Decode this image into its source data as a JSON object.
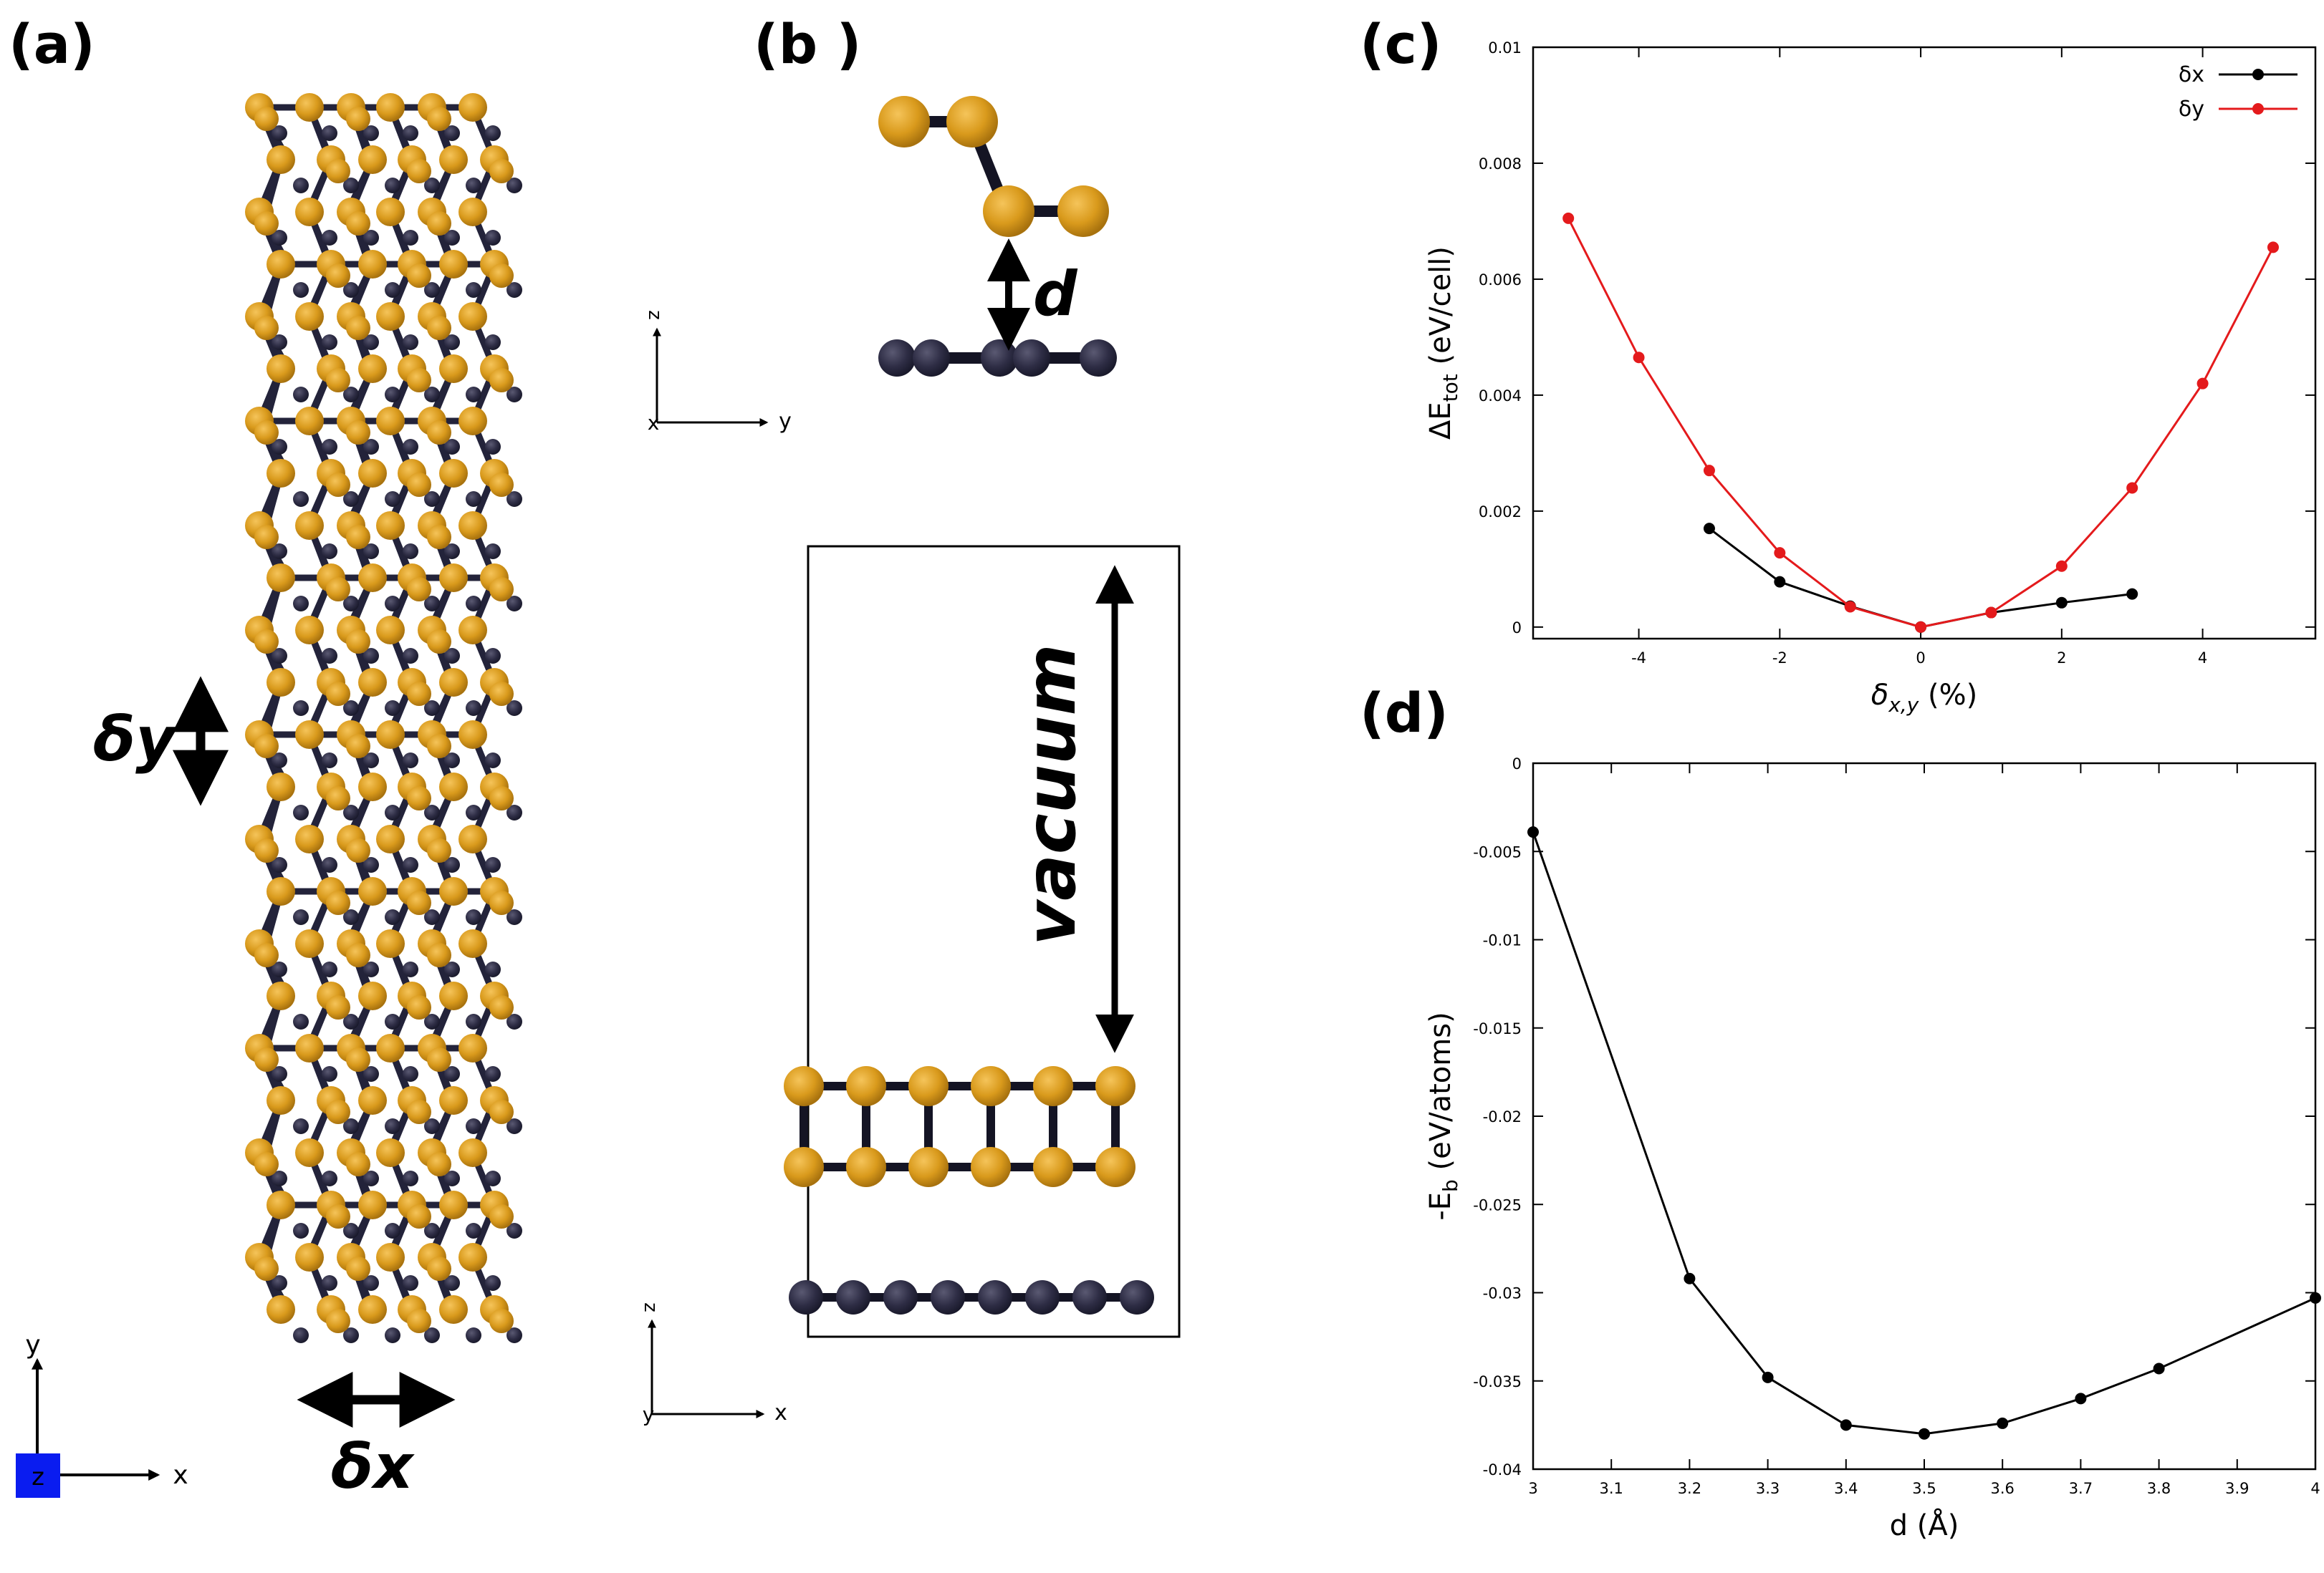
{
  "panels": {
    "a": {
      "label": "(a)",
      "dx_label": "δx",
      "dy_label": "δy",
      "axes": {
        "x": "x",
        "y": "y",
        "z": "z"
      }
    },
    "b": {
      "label": "(b )",
      "d_label": "d",
      "vacuum_label": "vacuum",
      "axes_top": {
        "y": "y",
        "z": "z",
        "x": "x"
      },
      "axes_bottom": {
        "x": "x",
        "z": "z",
        "y": "y"
      }
    },
    "c": {
      "label": "(c)"
    },
    "d": {
      "label": "(d)"
    }
  },
  "colors": {
    "gold": "#D99A1C",
    "navy": "#2E2D45",
    "black": "#000000",
    "red": "#E41A1C",
    "z_box": "#0A1CF0"
  },
  "chart_data": [
    {
      "id": "c",
      "type": "line",
      "xlabel": "δx,y (%)",
      "ylabel": "ΔEtot (eV/cell)",
      "xlim": [
        -5.5,
        5.6
      ],
      "ylim": [
        -0.0002,
        0.01
      ],
      "xticks": [
        -4,
        -2,
        0,
        2,
        4
      ],
      "yticks": [
        0,
        0.002,
        0.004,
        0.006,
        0.008,
        0.01
      ],
      "xtick_labels": [
        "-4",
        "-2",
        "0",
        "2",
        "4"
      ],
      "ytick_labels": [
        "0",
        "0.002",
        "0.004",
        "0.006",
        "0.008",
        "0.01"
      ],
      "legend_position": "top-right",
      "grid": false,
      "series": [
        {
          "name": "δx",
          "color": "#000000",
          "x": [
            -3,
            -2,
            -1,
            0,
            1,
            2,
            3
          ],
          "y": [
            0.0017,
            0.00078,
            0.00036,
            0.0,
            0.00025,
            0.00042,
            0.00057
          ]
        },
        {
          "name": "δy",
          "color": "#E41A1C",
          "x": [
            -5,
            -4,
            -3,
            -2,
            -1,
            0,
            1,
            2,
            3,
            4,
            5
          ],
          "y": [
            0.00705,
            0.00465,
            0.0027,
            0.00128,
            0.00035,
            0.0,
            0.00025,
            0.00105,
            0.0024,
            0.0042,
            0.00655
          ]
        }
      ]
    },
    {
      "id": "d",
      "type": "line",
      "xlabel": "d (Å)",
      "ylabel": "-Eb (eV/atoms)",
      "xlim": [
        3,
        4
      ],
      "ylim": [
        -0.04,
        0
      ],
      "xticks": [
        3,
        3.1,
        3.2,
        3.3,
        3.4,
        3.5,
        3.6,
        3.7,
        3.8,
        3.9,
        4
      ],
      "yticks": [
        0,
        -0.005,
        -0.01,
        -0.015,
        -0.02,
        -0.025,
        -0.03,
        -0.035,
        -0.04
      ],
      "xtick_labels": [
        "3",
        "3.1",
        "3.2",
        "3.3",
        "3.4",
        "3.5",
        "3.6",
        "3.7",
        "3.8",
        "3.9",
        "4"
      ],
      "ytick_labels": [
        "0",
        "-0.005",
        "-0.01",
        "-0.015",
        "-0.02",
        "-0.025",
        "-0.03",
        "-0.035",
        "-0.04"
      ],
      "grid": false,
      "series": [
        {
          "color": "#000000",
          "x": [
            3.0,
            3.2,
            3.3,
            3.4,
            3.5,
            3.6,
            3.7,
            3.8,
            4.0
          ],
          "y": [
            -0.0039,
            -0.0292,
            -0.0348,
            -0.0375,
            -0.038,
            -0.0374,
            -0.036,
            -0.0343,
            -0.0303
          ]
        }
      ]
    }
  ]
}
